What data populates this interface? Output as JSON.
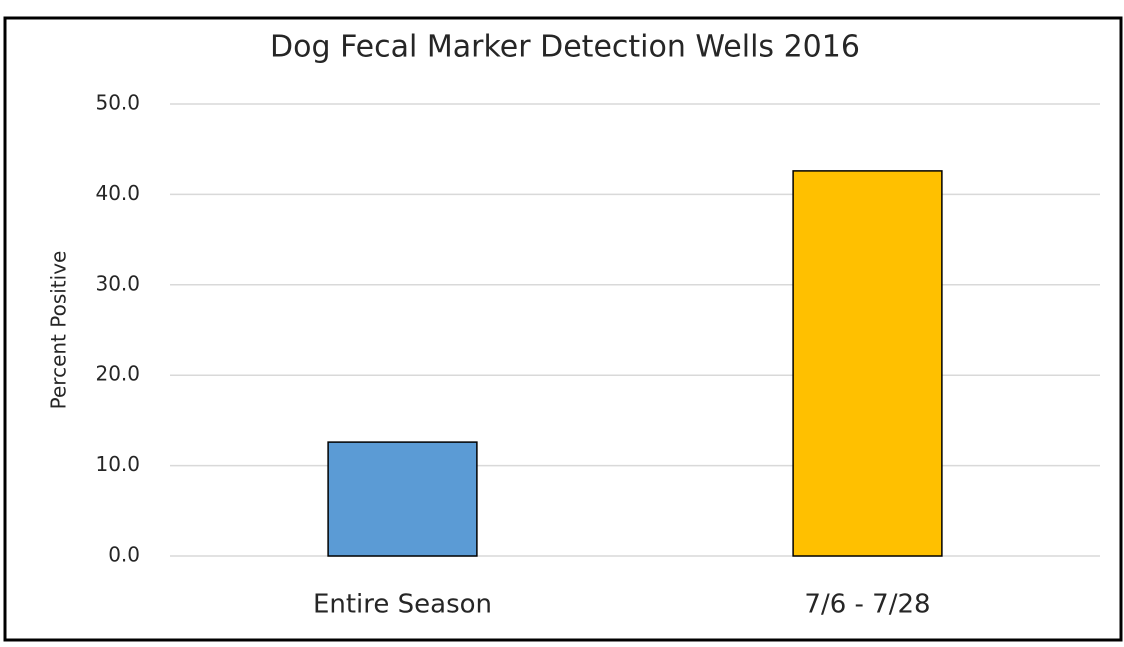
{
  "chart_data": {
    "type": "bar",
    "title": "Dog Fecal Marker Detection Wells 2016",
    "ylabel": "Percent Positive",
    "categories": [
      "Entire Season",
      "7/6 - 7/28"
    ],
    "values": [
      12.6,
      42.6
    ],
    "colors": [
      "#5b9bd5",
      "#ffc000"
    ],
    "ylim": [
      0,
      50
    ],
    "yticks": [
      {
        "value": 0,
        "label": "0.0"
      },
      {
        "value": 10,
        "label": "10.0"
      },
      {
        "value": 20,
        "label": "20.0"
      },
      {
        "value": 30,
        "label": "30.0"
      },
      {
        "value": 40,
        "label": "40.0"
      },
      {
        "value": 50,
        "label": "50.0"
      }
    ],
    "grid": true
  }
}
